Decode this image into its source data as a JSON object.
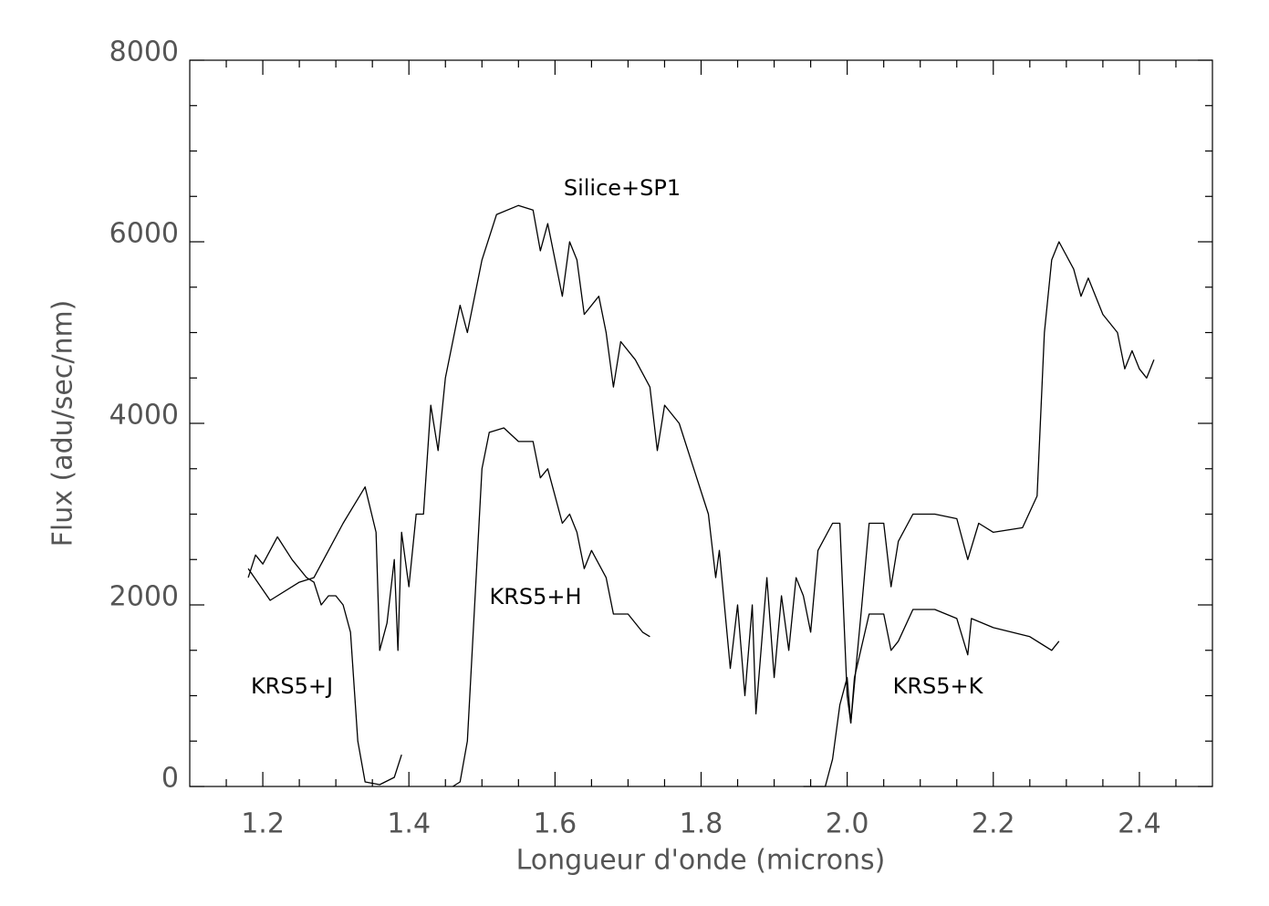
{
  "chart_data": {
    "type": "line",
    "xlabel": "Longueur d'onde (microns)",
    "ylabel": "Flux (adu/sec/nm)",
    "xlim": [
      1.1,
      2.5
    ],
    "ylim": [
      0,
      8000
    ],
    "xticks": [
      1.2,
      1.4,
      1.6,
      1.8,
      {
        "value": 2.0,
        "label": "2.0"
      },
      2.2,
      2.4
    ],
    "xminorticks": [
      1.15,
      1.25,
      1.3,
      1.35,
      1.45,
      1.5,
      1.55,
      1.65,
      1.7,
      1.75,
      1.85,
      1.9,
      1.95,
      2.05,
      2.1,
      2.15,
      2.25,
      2.3,
      2.35,
      2.45
    ],
    "yticks": [
      0,
      2000,
      4000,
      6000,
      8000
    ],
    "yminorticks": [
      500,
      1000,
      1500,
      2500,
      3000,
      3500,
      4500,
      5000,
      5500,
      6500,
      7000,
      7500
    ],
    "series": [
      {
        "name": "Silice+SP1",
        "color": "#000000",
        "x": [
          1.18,
          1.21,
          1.25,
          1.27,
          1.29,
          1.31,
          1.34,
          1.355,
          1.36,
          1.37,
          1.38,
          1.385,
          1.39,
          1.4,
          1.41,
          1.42,
          1.43,
          1.44,
          1.45,
          1.47,
          1.48,
          1.5,
          1.52,
          1.55,
          1.57,
          1.58,
          1.59,
          1.61,
          1.62,
          1.63,
          1.64,
          1.66,
          1.67,
          1.68,
          1.69,
          1.71,
          1.73,
          1.74,
          1.75,
          1.77,
          1.79,
          1.81,
          1.82,
          1.825,
          1.84,
          1.85,
          1.86,
          1.87,
          1.875,
          1.89,
          1.9,
          1.91,
          1.92,
          1.93,
          1.94,
          1.95,
          1.96,
          1.98,
          1.99,
          2.0,
          2.005,
          2.02,
          2.03,
          2.05,
          2.06,
          2.07,
          2.09,
          2.12,
          2.15,
          2.165,
          2.18,
          2.2,
          2.24,
          2.26,
          2.27,
          2.28,
          2.29,
          2.31,
          2.32,
          2.33,
          2.35,
          2.37,
          2.38,
          2.39,
          2.4,
          2.41,
          2.42
        ],
        "values": [
          2400,
          2050,
          2250,
          2300,
          2600,
          2900,
          3300,
          2800,
          1500,
          1800,
          2500,
          1500,
          2800,
          2200,
          3000,
          3000,
          4200,
          3700,
          4500,
          5300,
          5000,
          5800,
          6300,
          6400,
          6350,
          5900,
          6200,
          5400,
          6000,
          5800,
          5200,
          5400,
          5000,
          4400,
          4900,
          4700,
          4400,
          3700,
          4200,
          4000,
          3500,
          3000,
          2300,
          2600,
          1300,
          2000,
          1000,
          2000,
          800,
          2300,
          1200,
          2100,
          1500,
          2300,
          2100,
          1700,
          2600,
          2900,
          2900,
          1000,
          700,
          2000,
          2900,
          2900,
          2200,
          2700,
          3000,
          3000,
          2950,
          2500,
          2900,
          2800,
          2850,
          3200,
          5000,
          5800,
          6000,
          5700,
          5400,
          5600,
          5200,
          5000,
          4600,
          4800,
          4600,
          4500,
          4700
        ]
      },
      {
        "name": "KRS5+J",
        "color": "#000000",
        "x": [
          1.18,
          1.19,
          1.2,
          1.22,
          1.24,
          1.26,
          1.27,
          1.28,
          1.29,
          1.3,
          1.31,
          1.32,
          1.33,
          1.34,
          1.36,
          1.38,
          1.39
        ],
        "values": [
          2300,
          2550,
          2450,
          2750,
          2500,
          2300,
          2250,
          2000,
          2100,
          2100,
          2000,
          1700,
          500,
          50,
          20,
          100,
          350
        ]
      },
      {
        "name": "KRS5+H",
        "color": "#000000",
        "x": [
          1.46,
          1.47,
          1.48,
          1.49,
          1.5,
          1.51,
          1.53,
          1.55,
          1.57,
          1.58,
          1.59,
          1.6,
          1.61,
          1.62,
          1.63,
          1.64,
          1.65,
          1.67,
          1.68,
          1.7,
          1.72,
          1.73
        ],
        "values": [
          0,
          50,
          500,
          2000,
          3500,
          3900,
          3950,
          3800,
          3800,
          3400,
          3500,
          3200,
          2900,
          3000,
          2800,
          2400,
          2600,
          2300,
          1900,
          1900,
          1700,
          1650
        ]
      },
      {
        "name": "KRS5+K",
        "color": "#000000",
        "x": [
          1.94,
          1.97,
          1.98,
          1.99,
          2.0,
          2.005,
          2.01,
          2.03,
          2.05,
          2.06,
          2.07,
          2.09,
          2.12,
          2.15,
          2.165,
          2.17,
          2.2,
          2.25,
          2.28,
          2.29
        ],
        "values": [
          0,
          0,
          300,
          900,
          1200,
          700,
          1200,
          1900,
          1900,
          1500,
          1600,
          1950,
          1950,
          1850,
          1450,
          1850,
          1750,
          1650,
          1500,
          1600
        ]
      }
    ]
  }
}
